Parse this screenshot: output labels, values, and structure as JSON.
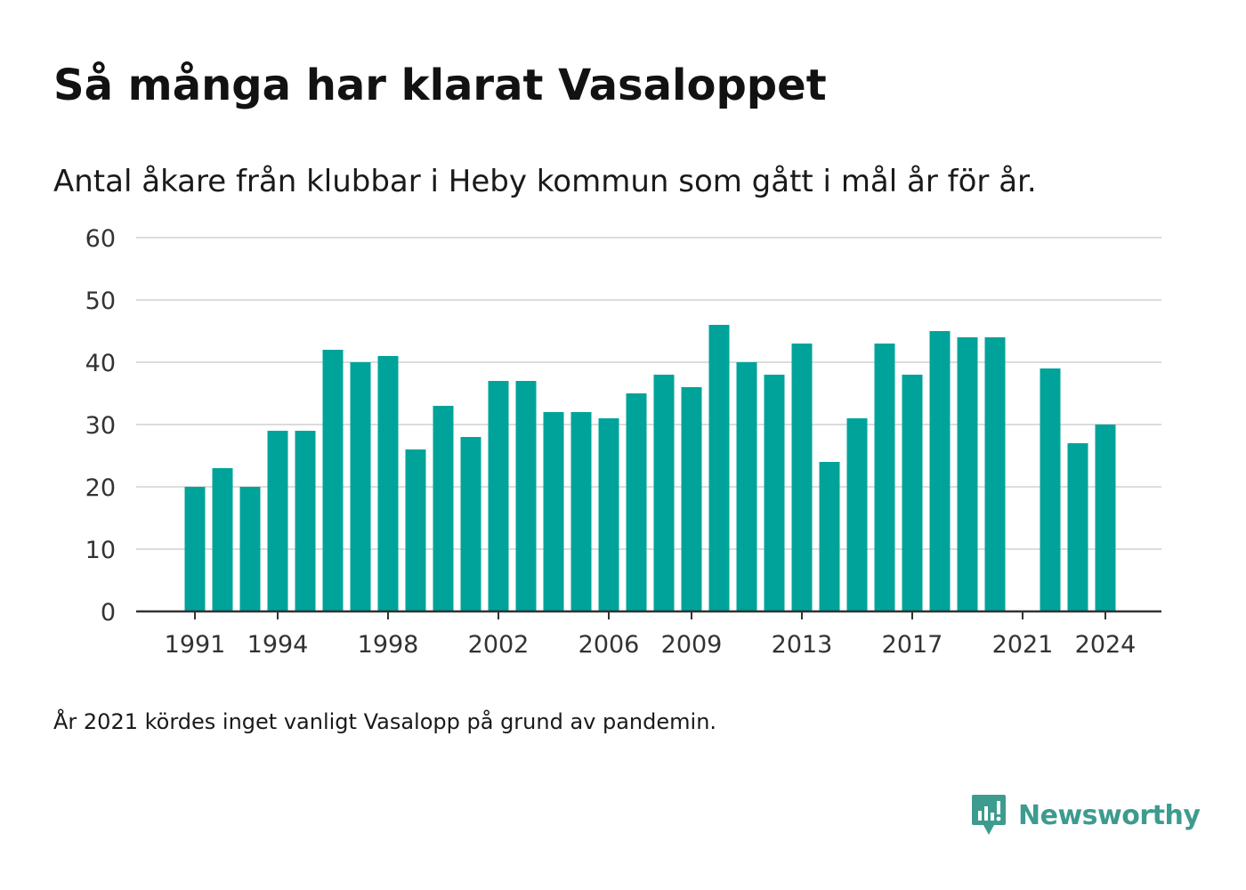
{
  "header": {
    "title": "Så många har klarat Vasaloppet",
    "subtitle": "Antal åkare från klubbar i Heby kommun som gått i mål år för år."
  },
  "footnote": "År 2021 kördes inget vanligt Vasalopp på grund av pandemin.",
  "brand": {
    "name": "Newsworthy",
    "color": "#3d9b8f",
    "logo_icon": "bar-chart-speech-bubble-icon"
  },
  "colors": {
    "bar": "#00a39a",
    "grid": "#dcdcdc",
    "axis": "#333333"
  },
  "chart_data": {
    "type": "bar",
    "categories": [
      1991,
      1992,
      1993,
      1994,
      1995,
      1996,
      1997,
      1998,
      1999,
      2000,
      2001,
      2002,
      2003,
      2004,
      2005,
      2006,
      2007,
      2008,
      2009,
      2010,
      2011,
      2012,
      2013,
      2014,
      2015,
      2016,
      2017,
      2018,
      2019,
      2020,
      2021,
      2022,
      2023,
      2024
    ],
    "values": [
      20,
      23,
      20,
      29,
      29,
      42,
      40,
      41,
      26,
      33,
      28,
      37,
      37,
      32,
      32,
      31,
      35,
      38,
      36,
      46,
      40,
      38,
      43,
      24,
      31,
      43,
      38,
      45,
      44,
      44,
      null,
      39,
      27,
      30
    ],
    "x_tick_labels": [
      1991,
      1994,
      1998,
      2002,
      2006,
      2009,
      2013,
      2017,
      2021,
      2024
    ],
    "y_ticks": [
      0,
      10,
      20,
      30,
      40,
      50,
      60
    ],
    "ylim": [
      0,
      60
    ],
    "xlabel": "",
    "ylabel": "",
    "grid": true,
    "legend": false
  }
}
